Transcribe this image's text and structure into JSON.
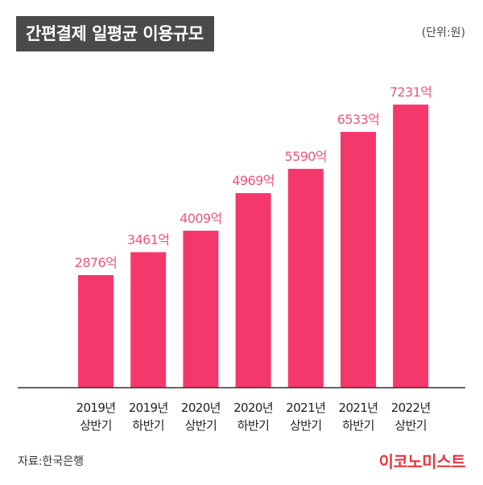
{
  "header": {
    "title": "간편결제 일평균 이용규모",
    "unit": "(단위:원)"
  },
  "footer": {
    "source": "자료:한국은행",
    "brand": "이코노미스트"
  },
  "colors": {
    "bar": "#f5386c",
    "value_label": "#f0557e",
    "axis": "#333333",
    "title_bg": "#4a4a4a"
  },
  "chart_data": {
    "type": "bar",
    "title": "간편결제 일평균 이용규모",
    "unit": "(단위:원)",
    "categories": [
      [
        "2019년",
        "상반기"
      ],
      [
        "2019년",
        "하반기"
      ],
      [
        "2020년",
        "상반기"
      ],
      [
        "2020년",
        "하반기"
      ],
      [
        "2021년",
        "상반기"
      ],
      [
        "2021년",
        "하반기"
      ],
      [
        "2022년",
        "상반기"
      ]
    ],
    "values": [
      2876,
      3461,
      4009,
      4969,
      5590,
      6533,
      7231
    ],
    "value_labels": [
      "2876억",
      "3461억",
      "4009억",
      "4969억",
      "5590억",
      "6533억",
      "7231억"
    ],
    "ylim": [
      0,
      7231
    ],
    "grid": false,
    "legend": "none",
    "xlabel": "",
    "ylabel": ""
  }
}
